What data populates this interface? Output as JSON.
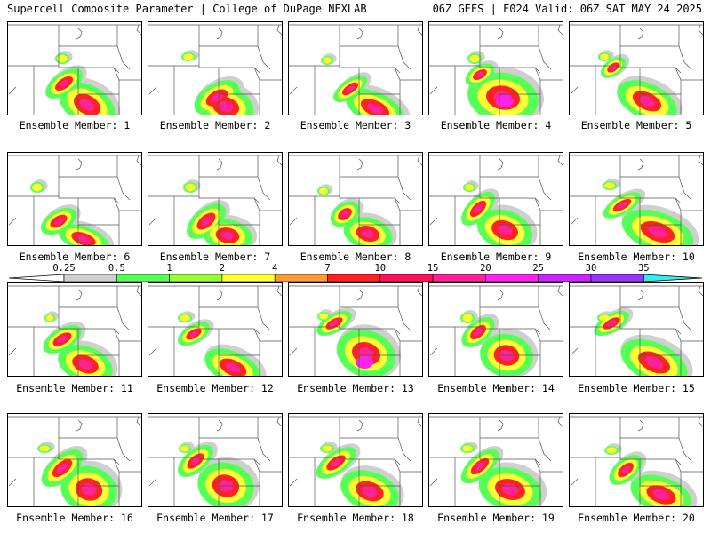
{
  "header": {
    "left_title": "Supercell Composite Parameter | College of DuPage NEXLAB",
    "right_title": "06Z GEFS | F024 Valid: 06Z SAT MAY 24 2025"
  },
  "colorbar": {
    "ticks": [
      "0.25",
      "0.5",
      "1",
      "2",
      "4",
      "7",
      "10",
      "15",
      "20",
      "25",
      "30",
      "35"
    ],
    "colors": [
      "#cfcfcf",
      "#55ff55",
      "#99ff33",
      "#ffff33",
      "#ff9933",
      "#ff2222",
      "#ff1155",
      "#ff2299",
      "#ff22ee",
      "#cc22ff",
      "#9933ff",
      "#cc77ff",
      "#33eeee"
    ]
  },
  "panels": [
    {
      "label": "Ensemble Member: 1"
    },
    {
      "label": "Ensemble Member: 2"
    },
    {
      "label": "Ensemble Member: 3"
    },
    {
      "label": "Ensemble Member: 4"
    },
    {
      "label": "Ensemble Member: 5"
    },
    {
      "label": "Ensemble Member: 6"
    },
    {
      "label": "Ensemble Member: 7"
    },
    {
      "label": "Ensemble Member: 8"
    },
    {
      "label": "Ensemble Member: 9"
    },
    {
      "label": "Ensemble Member: 10"
    },
    {
      "label": "Ensemble Member: 11"
    },
    {
      "label": "Ensemble Member: 12"
    },
    {
      "label": "Ensemble Member: 13"
    },
    {
      "label": "Ensemble Member: 14"
    },
    {
      "label": "Ensemble Member: 15"
    },
    {
      "label": "Ensemble Member: 16"
    },
    {
      "label": "Ensemble Member: 17"
    },
    {
      "label": "Ensemble Member: 18"
    },
    {
      "label": "Ensemble Member: 19"
    },
    {
      "label": "Ensemble Member: 20"
    }
  ]
}
